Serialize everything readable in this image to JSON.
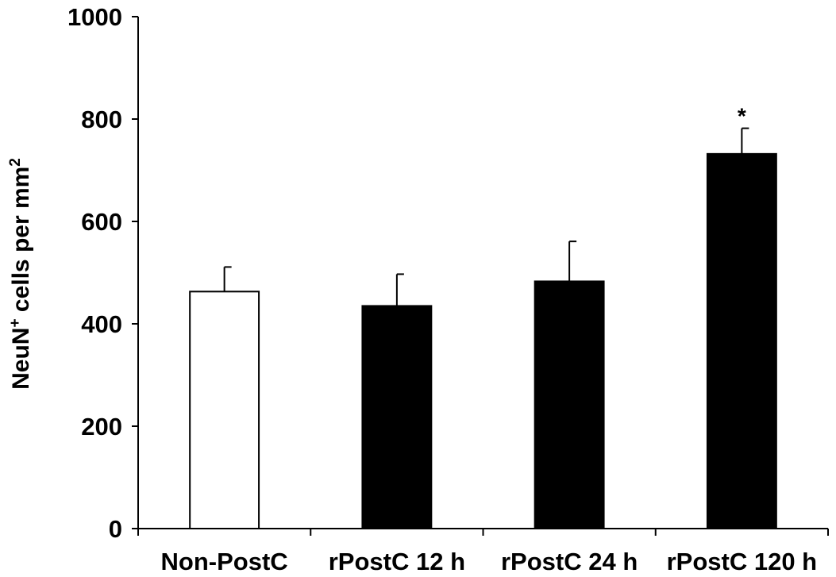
{
  "chart_data": {
    "type": "bar",
    "title": "",
    "xlabel": "",
    "ylabel": "NeuN",
    "ylabel_superscript": "+",
    "ylabel_rest": " cells per mm",
    "ylabel_unit_superscript": "2",
    "categories": [
      "Non-PostC",
      "rPostC 12 h",
      "rPostC 24 h",
      "rPostC 120 h"
    ],
    "values": [
      463,
      435,
      483,
      732
    ],
    "errors": [
      48,
      62,
      78,
      50
    ],
    "fills": [
      "#ffffff",
      "#000000",
      "#000000",
      "#000000"
    ],
    "annotations": [
      "",
      "",
      "",
      "*"
    ],
    "ylim": [
      0,
      1000
    ],
    "yticks": [
      "0",
      "200",
      "400",
      "600",
      "800",
      "1000"
    ],
    "grid": false
  }
}
